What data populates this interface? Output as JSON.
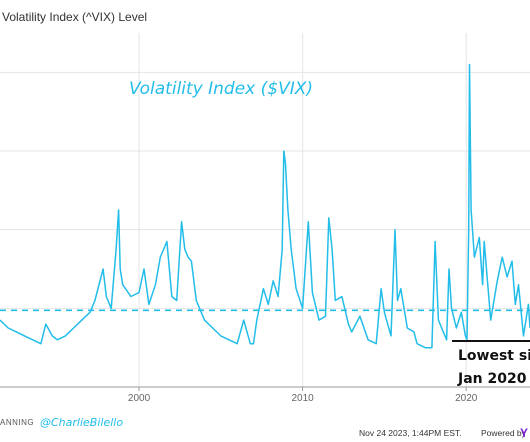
{
  "header": {
    "title": "Volatility Index (^VIX) Level"
  },
  "chart_data": {
    "type": "line",
    "title": "Volatility Index ($VIX)",
    "xlabel": "",
    "ylabel": "",
    "x_ticks": [
      "2000",
      "2010",
      "2020"
    ],
    "xlim": [
      1991.5,
      2023.9
    ],
    "ylim": [
      0,
      90
    ],
    "grid": true,
    "reference_line": {
      "value": 19.5,
      "style": "dashed"
    },
    "callout": {
      "line1": "Lowest sinc",
      "line2": "Jan 2020"
    },
    "series": [
      {
        "points": [
          [
            1991.5,
            17
          ],
          [
            1992.0,
            15
          ],
          [
            1992.5,
            14
          ],
          [
            1993.0,
            13
          ],
          [
            1993.5,
            12
          ],
          [
            1994.0,
            11
          ],
          [
            1994.3,
            16
          ],
          [
            1994.7,
            13
          ],
          [
            1995.0,
            12
          ],
          [
            1995.5,
            13
          ],
          [
            1996.0,
            15
          ],
          [
            1996.5,
            17
          ],
          [
            1997.0,
            19
          ],
          [
            1997.3,
            22
          ],
          [
            1997.8,
            30
          ],
          [
            1998.0,
            23
          ],
          [
            1998.3,
            20
          ],
          [
            1998.6,
            35
          ],
          [
            1998.75,
            45
          ],
          [
            1998.85,
            30
          ],
          [
            1999.0,
            26
          ],
          [
            1999.5,
            23
          ],
          [
            2000.0,
            24
          ],
          [
            2000.3,
            30
          ],
          [
            2000.6,
            21
          ],
          [
            2001.0,
            26
          ],
          [
            2001.3,
            33
          ],
          [
            2001.7,
            37
          ],
          [
            2002.0,
            23
          ],
          [
            2002.3,
            22
          ],
          [
            2002.6,
            42
          ],
          [
            2002.8,
            35
          ],
          [
            2003.0,
            33
          ],
          [
            2003.2,
            32
          ],
          [
            2003.5,
            22
          ],
          [
            2004.0,
            17
          ],
          [
            2004.5,
            15
          ],
          [
            2005.0,
            13
          ],
          [
            2005.5,
            12
          ],
          [
            2006.0,
            11
          ],
          [
            2006.4,
            17
          ],
          [
            2006.8,
            11
          ],
          [
            2007.0,
            11
          ],
          [
            2007.2,
            17
          ],
          [
            2007.6,
            25
          ],
          [
            2007.9,
            21
          ],
          [
            2008.2,
            27
          ],
          [
            2008.5,
            23
          ],
          [
            2008.75,
            35
          ],
          [
            2008.85,
            60
          ],
          [
            2008.95,
            57
          ],
          [
            2009.1,
            45
          ],
          [
            2009.3,
            35
          ],
          [
            2009.6,
            25
          ],
          [
            2010.0,
            20
          ],
          [
            2010.35,
            42
          ],
          [
            2010.6,
            24
          ],
          [
            2011.0,
            17
          ],
          [
            2011.4,
            18
          ],
          [
            2011.6,
            43
          ],
          [
            2011.8,
            35
          ],
          [
            2012.0,
            22
          ],
          [
            2012.4,
            23
          ],
          [
            2012.8,
            16
          ],
          [
            2013.0,
            14
          ],
          [
            2013.5,
            18
          ],
          [
            2014.0,
            12
          ],
          [
            2014.5,
            11
          ],
          [
            2014.8,
            25
          ],
          [
            2015.0,
            19
          ],
          [
            2015.4,
            13
          ],
          [
            2015.65,
            40
          ],
          [
            2015.8,
            22
          ],
          [
            2016.0,
            25
          ],
          [
            2016.4,
            15
          ],
          [
            2016.8,
            14
          ],
          [
            2017.0,
            11
          ],
          [
            2017.5,
            10
          ],
          [
            2017.9,
            10
          ],
          [
            2018.1,
            37
          ],
          [
            2018.3,
            17
          ],
          [
            2018.8,
            12
          ],
          [
            2018.95,
            30
          ],
          [
            2019.1,
            20
          ],
          [
            2019.4,
            15
          ],
          [
            2019.7,
            19
          ],
          [
            2019.95,
            13
          ],
          [
            2020.05,
            12
          ],
          [
            2020.15,
            40
          ],
          [
            2020.2,
            82
          ],
          [
            2020.3,
            45
          ],
          [
            2020.5,
            33
          ],
          [
            2020.8,
            38
          ],
          [
            2021.0,
            26
          ],
          [
            2021.1,
            37
          ],
          [
            2021.5,
            17
          ],
          [
            2021.9,
            27
          ],
          [
            2022.2,
            33
          ],
          [
            2022.5,
            28
          ],
          [
            2022.8,
            32
          ],
          [
            2023.0,
            21
          ],
          [
            2023.2,
            26
          ],
          [
            2023.5,
            13
          ],
          [
            2023.8,
            21
          ],
          [
            2023.9,
            15
          ]
        ]
      }
    ]
  },
  "footer": {
    "brand_fragment": "ANNING",
    "handle": "@CharlieBilello",
    "timestamp": "Nov 24 2023, 1:44PM EST.",
    "powered_by": "Powered by",
    "ycharts_fragment": "Y"
  },
  "colors": {
    "line": "#22bde9",
    "grid": "#e5e5e5",
    "axis": "#999999",
    "callout_line": "#111111"
  }
}
